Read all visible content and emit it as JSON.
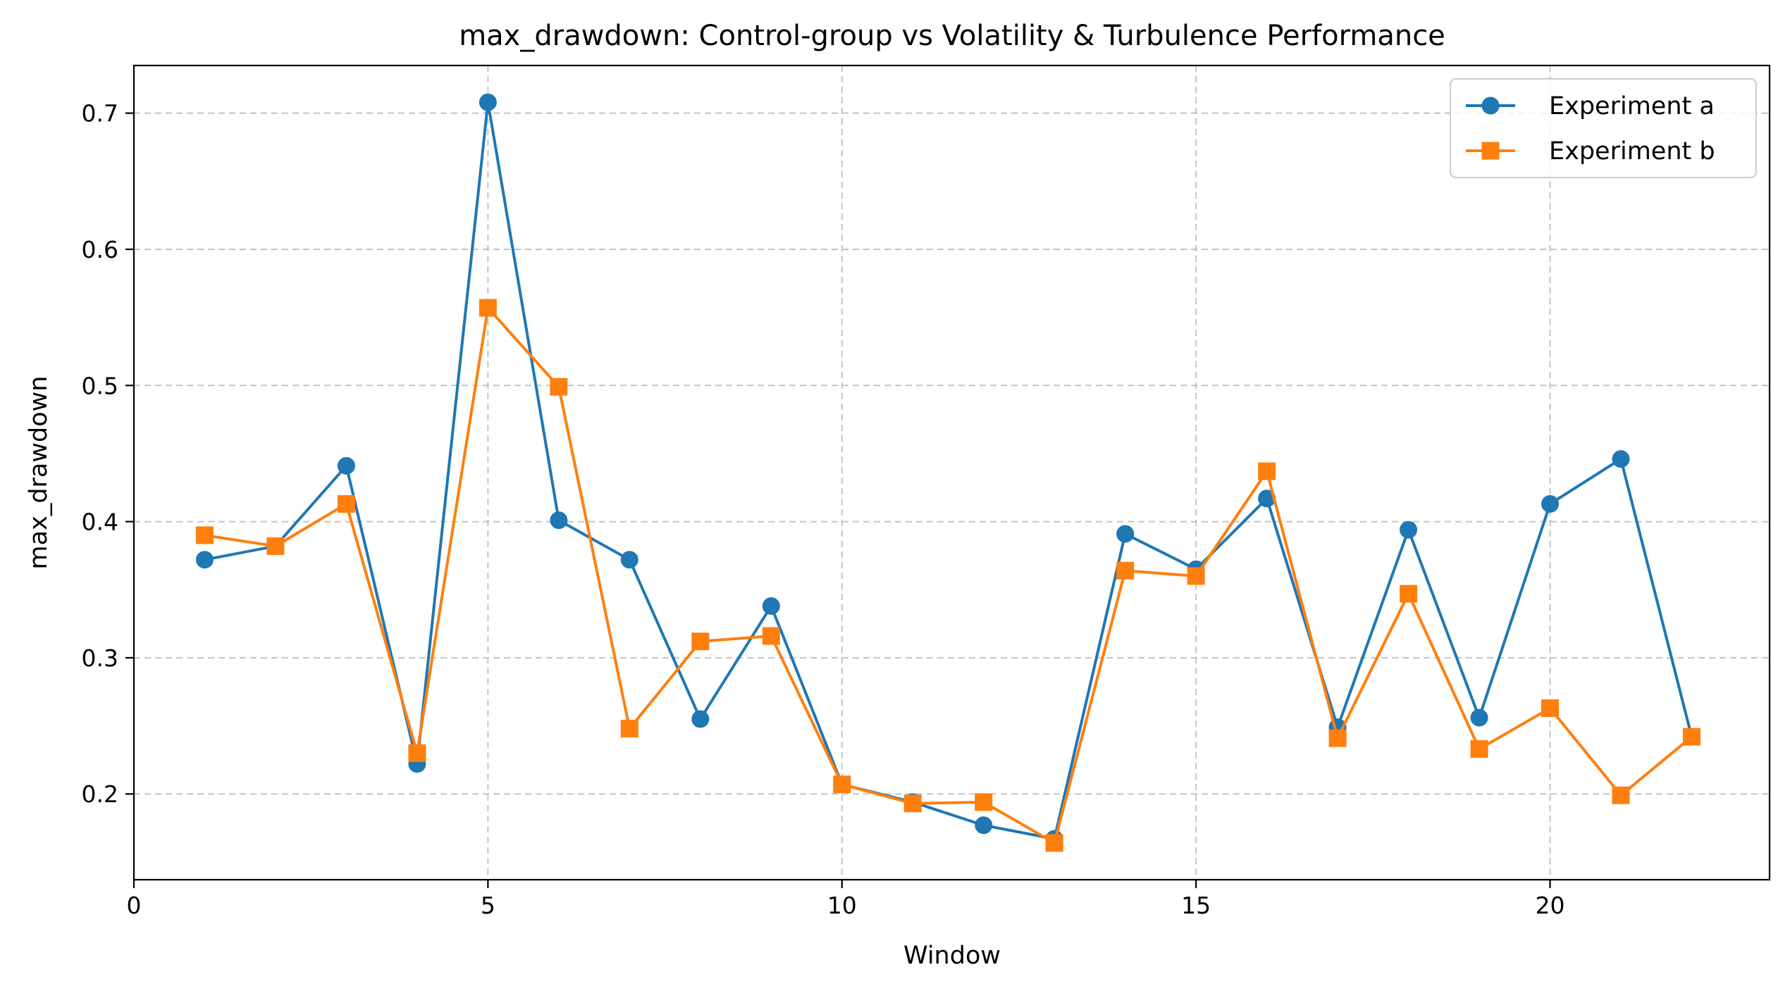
{
  "colors": {
    "series_a": "#1f77b4",
    "series_b": "#ff7f0e"
  },
  "chart_data": {
    "type": "line",
    "title": "max_drawdown: Control-group vs Volatility & Turbulence Performance",
    "xlabel": "Window",
    "ylabel": "max_drawdown",
    "xlim": [
      0,
      23.1
    ],
    "ylim": [
      0.137,
      0.735
    ],
    "xticks": [
      0,
      5,
      10,
      15,
      20
    ],
    "xtick_labels": [
      "0",
      "5",
      "10",
      "15",
      "20"
    ],
    "yticks": [
      0.2,
      0.3,
      0.4,
      0.5,
      0.6,
      0.7
    ],
    "ytick_labels": [
      "0.2",
      "0.3",
      "0.4",
      "0.5",
      "0.6",
      "0.7"
    ],
    "grid": true,
    "legend_position": "top-right",
    "x": [
      1,
      2,
      3,
      4,
      5,
      6,
      7,
      8,
      9,
      10,
      11,
      12,
      13,
      14,
      15,
      16,
      17,
      18,
      19,
      20,
      21,
      22
    ],
    "series": [
      {
        "name": "Experiment a",
        "marker": "circle",
        "values": [
          0.372,
          0.382,
          0.441,
          0.222,
          0.708,
          0.401,
          0.372,
          0.255,
          0.338,
          0.207,
          0.194,
          0.177,
          0.167,
          0.391,
          0.365,
          0.417,
          0.249,
          0.394,
          0.256,
          0.413,
          0.446,
          0.242
        ]
      },
      {
        "name": "Experiment b",
        "marker": "square",
        "values": [
          0.39,
          0.382,
          0.413,
          0.23,
          0.557,
          0.499,
          0.248,
          0.312,
          0.316,
          0.207,
          0.193,
          0.194,
          0.164,
          0.364,
          0.36,
          0.437,
          0.241,
          0.347,
          0.233,
          0.263,
          0.199,
          0.242
        ]
      }
    ]
  }
}
